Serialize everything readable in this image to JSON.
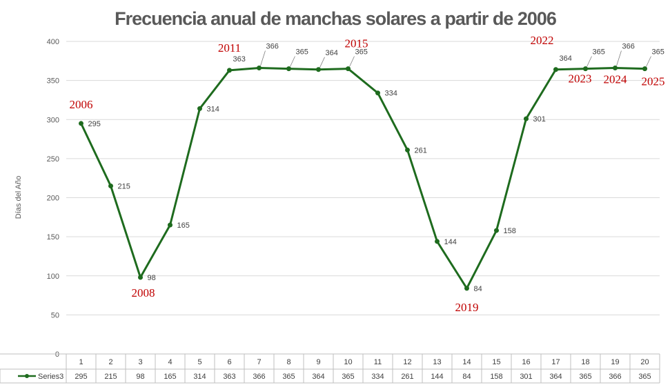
{
  "chart_data": {
    "type": "line",
    "title": "Frecuencia anual de manchas solares a partir de 2006",
    "ylabel": "Días del Año",
    "xlabel": "",
    "ylim": [
      0,
      400
    ],
    "yticks": [
      0,
      50,
      100,
      150,
      200,
      250,
      300,
      350,
      400
    ],
    "grid": true,
    "legend": "data-table",
    "categories": [
      "1",
      "2",
      "3",
      "4",
      "5",
      "6",
      "7",
      "8",
      "9",
      "10",
      "11",
      "12",
      "13",
      "14",
      "15",
      "16",
      "17",
      "18",
      "19",
      "20"
    ],
    "series": [
      {
        "name": "Series3",
        "color": "#1e6b1e",
        "values": [
          295,
          215,
          98,
          165,
          314,
          363,
          366,
          365,
          364,
          365,
          334,
          261,
          144,
          84,
          158,
          301,
          364,
          365,
          366,
          365
        ]
      }
    ],
    "annotations": [
      {
        "text": "2006",
        "index": 0
      },
      {
        "text": "2008",
        "index": 2
      },
      {
        "text": "2011",
        "index": 5
      },
      {
        "text": "2015",
        "index": 9
      },
      {
        "text": "2019",
        "index": 13
      },
      {
        "text": "2022",
        "index": 16
      },
      {
        "text": "2023",
        "index": 17
      },
      {
        "text": "2024",
        "index": 18
      },
      {
        "text": "2025",
        "index": 19
      }
    ],
    "annotation_color": "#c00000"
  }
}
